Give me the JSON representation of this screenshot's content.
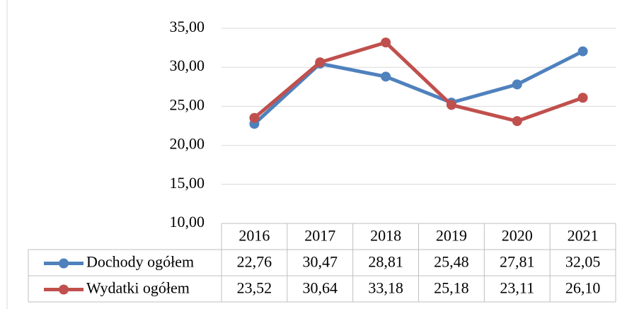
{
  "chart_data": {
    "type": "line",
    "categories": [
      "2016",
      "2017",
      "2018",
      "2019",
      "2020",
      "2021"
    ],
    "series": [
      {
        "name": "Dochody ogółem",
        "color": "#4f81bd",
        "values": [
          22.76,
          30.47,
          28.81,
          25.48,
          27.81,
          32.05
        ],
        "value_labels": [
          "22,76",
          "30,47",
          "28,81",
          "25,48",
          "27,81",
          "32,05"
        ]
      },
      {
        "name": "Wydatki ogółem",
        "color": "#c0504d",
        "values": [
          23.52,
          30.64,
          33.18,
          25.18,
          23.11,
          26.1
        ],
        "value_labels": [
          "23,52",
          "30,64",
          "33,18",
          "25,18",
          "23,11",
          "26,10"
        ]
      }
    ],
    "ylim": [
      10,
      35
    ],
    "yticks": [
      {
        "value": 10,
        "label": "10,00"
      },
      {
        "value": 15,
        "label": "15,00"
      },
      {
        "value": 20,
        "label": "20,00"
      },
      {
        "value": 25,
        "label": "25,00"
      },
      {
        "value": 30,
        "label": "30,00"
      },
      {
        "value": 35,
        "label": "35,00"
      }
    ],
    "grid": true
  }
}
